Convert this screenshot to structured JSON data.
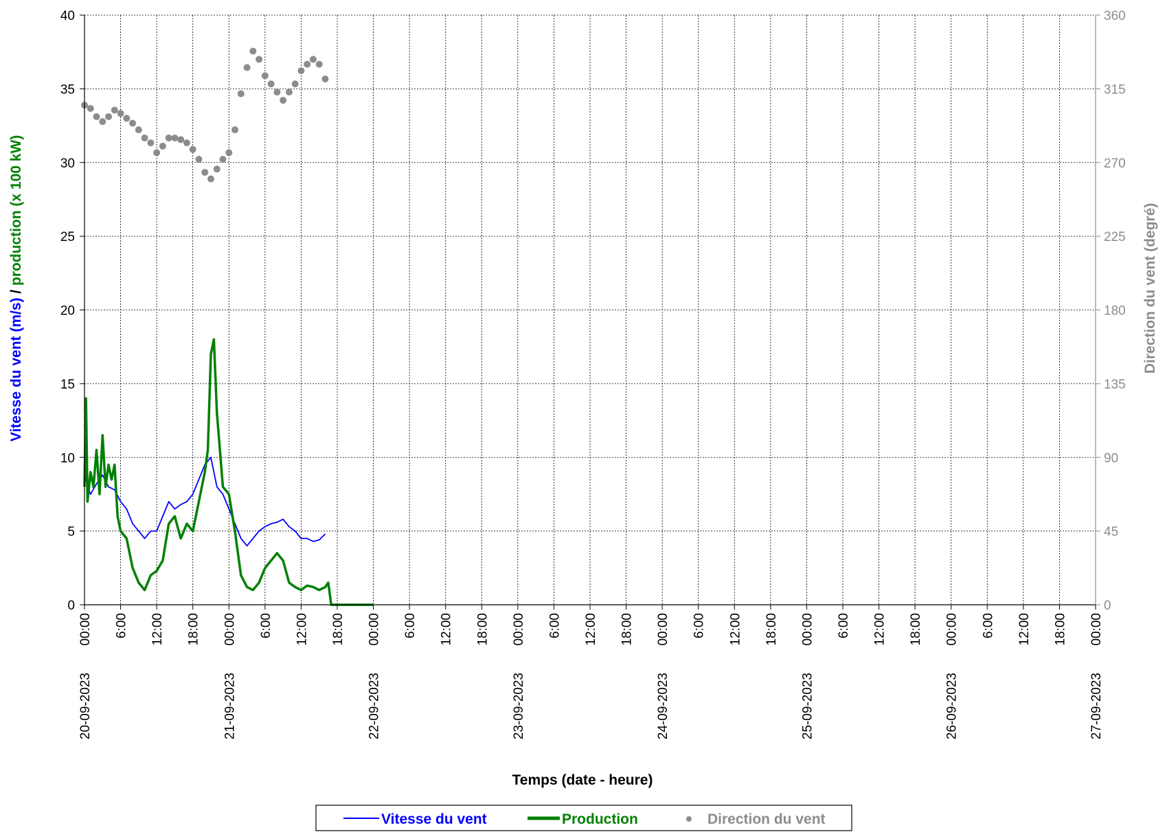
{
  "chart_data": {
    "type": "line",
    "xlabel": "Temps (date - heure)",
    "ylabel_parts": [
      {
        "text": "Vitesse du vent (m/s)",
        "color": "#0000ff"
      },
      {
        "text": " / ",
        "color": "#000000"
      },
      {
        "text": "production (x 100 kW)",
        "color": "#008000"
      }
    ],
    "y2label": "Direction du vent (degré)",
    "xlim": [
      "2023-09-20 00:00",
      "2023-09-27 00:00"
    ],
    "ylim": [
      0,
      40
    ],
    "y2lim": [
      0,
      360
    ],
    "y_ticks": [
      0,
      5,
      10,
      15,
      20,
      25,
      30,
      35,
      40
    ],
    "y2_ticks": [
      0,
      45,
      90,
      135,
      180,
      225,
      270,
      315,
      360
    ],
    "x_tick_labels": [
      "00:00",
      "6:00",
      "12:00",
      "18:00",
      "00:00",
      "6:00",
      "12:00",
      "18:00",
      "00:00",
      "6:00",
      "12:00",
      "18:00",
      "00:00",
      "6:00",
      "12:00",
      "18:00",
      "00:00",
      "6:00",
      "12:00",
      "18:00",
      "00:00",
      "6:00",
      "12:00",
      "18:00",
      "00:00",
      "6:00",
      "12:00",
      "18:00",
      "00:00"
    ],
    "date_labels": [
      "20-09-2023",
      "21-09-2023",
      "22-09-2023",
      "23-09-2023",
      "24-09-2023",
      "25-09-2023",
      "26-09-2023",
      "27-09-2023"
    ],
    "grid": true,
    "legend_position": "bottom-center",
    "colors": {
      "wind_speed": "#0000ff",
      "production": "#008000",
      "direction": "#8c8c8c"
    },
    "series": [
      {
        "name": "Vitesse du vent",
        "axis": "left",
        "style": "line",
        "x": [
          "2023-09-20 00:00",
          "2023-09-20 00:30",
          "2023-09-20 01:00",
          "2023-09-20 02:00",
          "2023-09-20 03:00",
          "2023-09-20 04:00",
          "2023-09-20 05:00",
          "2023-09-20 06:00",
          "2023-09-20 07:00",
          "2023-09-20 08:00",
          "2023-09-20 09:00",
          "2023-09-20 10:00",
          "2023-09-20 11:00",
          "2023-09-20 12:00",
          "2023-09-20 13:00",
          "2023-09-20 14:00",
          "2023-09-20 15:00",
          "2023-09-20 16:00",
          "2023-09-20 17:00",
          "2023-09-20 18:00",
          "2023-09-20 19:00",
          "2023-09-20 20:00",
          "2023-09-20 21:00",
          "2023-09-20 22:00",
          "2023-09-20 23:00",
          "2023-09-21 00:00",
          "2023-09-21 01:00",
          "2023-09-21 02:00",
          "2023-09-21 03:00",
          "2023-09-21 04:00",
          "2023-09-21 05:00",
          "2023-09-21 06:00",
          "2023-09-21 07:00",
          "2023-09-21 08:00",
          "2023-09-21 09:00",
          "2023-09-21 10:00",
          "2023-09-21 11:00",
          "2023-09-21 12:00",
          "2023-09-21 13:00",
          "2023-09-21 14:00",
          "2023-09-21 15:00",
          "2023-09-21 16:00"
        ],
        "values": [
          9.0,
          8.0,
          7.5,
          8.2,
          8.8,
          8.0,
          7.8,
          7.0,
          6.5,
          5.5,
          5.0,
          4.5,
          5.0,
          5.0,
          6.0,
          7.0,
          6.5,
          6.8,
          7.0,
          7.5,
          8.5,
          9.5,
          10.0,
          8.0,
          7.5,
          6.5,
          5.5,
          4.5,
          4.0,
          4.5,
          5.0,
          5.3,
          5.5,
          5.6,
          5.8,
          5.3,
          5.0,
          4.5,
          4.5,
          4.3,
          4.4,
          4.8
        ]
      },
      {
        "name": "Production",
        "axis": "left",
        "style": "line",
        "x": [
          "2023-09-20 00:00",
          "2023-09-20 00:15",
          "2023-09-20 00:30",
          "2023-09-20 01:00",
          "2023-09-20 01:30",
          "2023-09-20 02:00",
          "2023-09-20 02:30",
          "2023-09-20 03:00",
          "2023-09-20 03:30",
          "2023-09-20 04:00",
          "2023-09-20 04:30",
          "2023-09-20 05:00",
          "2023-09-20 05:30",
          "2023-09-20 06:00",
          "2023-09-20 07:00",
          "2023-09-20 08:00",
          "2023-09-20 09:00",
          "2023-09-20 10:00",
          "2023-09-20 11:00",
          "2023-09-20 12:00",
          "2023-09-20 13:00",
          "2023-09-20 14:00",
          "2023-09-20 15:00",
          "2023-09-20 16:00",
          "2023-09-20 17:00",
          "2023-09-20 18:00",
          "2023-09-20 19:00",
          "2023-09-20 20:00",
          "2023-09-20 20:30",
          "2023-09-20 21:00",
          "2023-09-20 21:30",
          "2023-09-20 22:00",
          "2023-09-20 23:00",
          "2023-09-21 00:00",
          "2023-09-21 01:00",
          "2023-09-21 02:00",
          "2023-09-21 03:00",
          "2023-09-21 04:00",
          "2023-09-21 05:00",
          "2023-09-21 06:00",
          "2023-09-21 07:00",
          "2023-09-21 08:00",
          "2023-09-21 09:00",
          "2023-09-21 10:00",
          "2023-09-21 11:00",
          "2023-09-21 12:00",
          "2023-09-21 13:00",
          "2023-09-21 14:00",
          "2023-09-21 15:00",
          "2023-09-21 16:00",
          "2023-09-21 16:30",
          "2023-09-21 17:00",
          "2023-09-21 20:00",
          "2023-09-22 00:00"
        ],
        "values": [
          8.0,
          14.0,
          7.0,
          9.0,
          8.0,
          10.5,
          7.5,
          11.5,
          8.0,
          9.5,
          8.5,
          9.5,
          6.0,
          5.0,
          4.5,
          2.5,
          1.5,
          1.0,
          2.0,
          2.3,
          3.0,
          5.5,
          6.0,
          4.5,
          5.5,
          5.0,
          7.0,
          9.0,
          10.5,
          17.0,
          18.0,
          13.0,
          8.0,
          7.5,
          5.0,
          2.0,
          1.2,
          1.0,
          1.5,
          2.5,
          3.0,
          3.5,
          3.0,
          1.5,
          1.2,
          1.0,
          1.3,
          1.2,
          1.0,
          1.2,
          1.5,
          0.0,
          0.0,
          0.0
        ]
      },
      {
        "name": "Direction du vent",
        "axis": "right",
        "style": "scatter",
        "x": [
          "2023-09-20 00:00",
          "2023-09-20 01:00",
          "2023-09-20 02:00",
          "2023-09-20 03:00",
          "2023-09-20 04:00",
          "2023-09-20 05:00",
          "2023-09-20 06:00",
          "2023-09-20 07:00",
          "2023-09-20 08:00",
          "2023-09-20 09:00",
          "2023-09-20 10:00",
          "2023-09-20 11:00",
          "2023-09-20 12:00",
          "2023-09-20 13:00",
          "2023-09-20 14:00",
          "2023-09-20 15:00",
          "2023-09-20 16:00",
          "2023-09-20 17:00",
          "2023-09-20 18:00",
          "2023-09-20 19:00",
          "2023-09-20 20:00",
          "2023-09-20 21:00",
          "2023-09-20 22:00",
          "2023-09-20 23:00",
          "2023-09-21 00:00",
          "2023-09-21 01:00",
          "2023-09-21 02:00",
          "2023-09-21 03:00",
          "2023-09-21 04:00",
          "2023-09-21 05:00",
          "2023-09-21 06:00",
          "2023-09-21 07:00",
          "2023-09-21 08:00",
          "2023-09-21 09:00",
          "2023-09-21 10:00",
          "2023-09-21 11:00",
          "2023-09-21 12:00",
          "2023-09-21 13:00",
          "2023-09-21 14:00",
          "2023-09-21 15:00",
          "2023-09-21 16:00"
        ],
        "values": [
          305,
          303,
          298,
          295,
          298,
          302,
          300,
          297,
          294,
          290,
          285,
          282,
          276,
          280,
          285,
          285,
          284,
          282,
          278,
          272,
          264,
          260,
          266,
          272,
          276,
          290,
          312,
          328,
          338,
          333,
          323,
          318,
          313,
          308,
          313,
          318,
          326,
          330,
          333,
          330,
          321
        ]
      }
    ]
  },
  "legend": {
    "items": [
      {
        "label": "Vitesse du vent",
        "marker": "line",
        "color": "#0000ff"
      },
      {
        "label": "Production",
        "marker": "thick-line",
        "color": "#008000"
      },
      {
        "label": "Direction du vent",
        "marker": "dot",
        "color": "#8c8c8c"
      }
    ]
  }
}
